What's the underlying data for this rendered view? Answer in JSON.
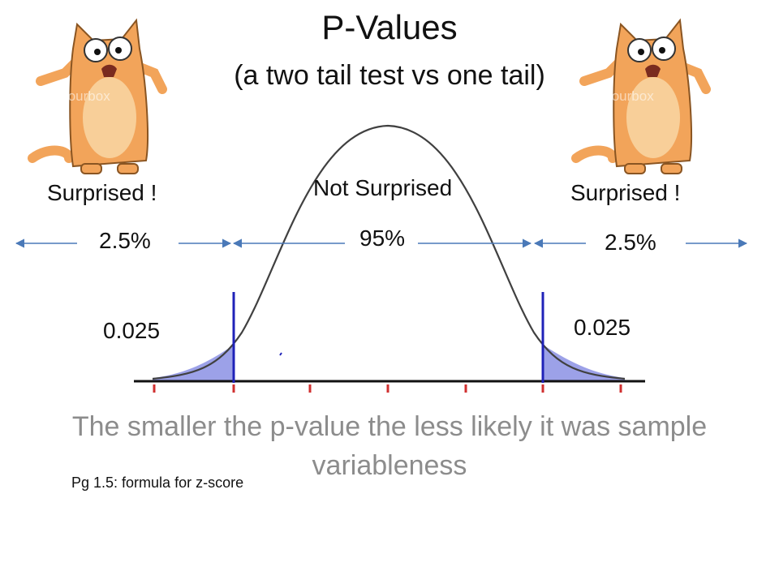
{
  "title": "P-Values",
  "subtitle": "(a two tail test vs one tail)",
  "labels": {
    "left_region": "Surprised !",
    "center_region": "Not Surprised",
    "right_region": "Surprised !",
    "left_percent": "2.5%",
    "center_percent": "95%",
    "right_percent": "2.5%",
    "left_p": "0.025",
    "right_p": "0.025"
  },
  "caption": "The smaller the p-value the less likely it was sample variableness",
  "note": "Pg 1.5: formula for z-score",
  "illustrations": {
    "left_cat": "surprised-cat-icon",
    "right_cat": "surprised-cat-icon",
    "watermark": "colourbox"
  },
  "colors": {
    "curve": "#404040",
    "tail_fill": "#7b82e0",
    "critical_line": "#1f22b8",
    "arrow": "#4a79b8",
    "tick": "#d03030",
    "caption": "#8c8c8c",
    "cat_body": "#f2a45a",
    "cat_belly": "#f8cf99"
  }
}
